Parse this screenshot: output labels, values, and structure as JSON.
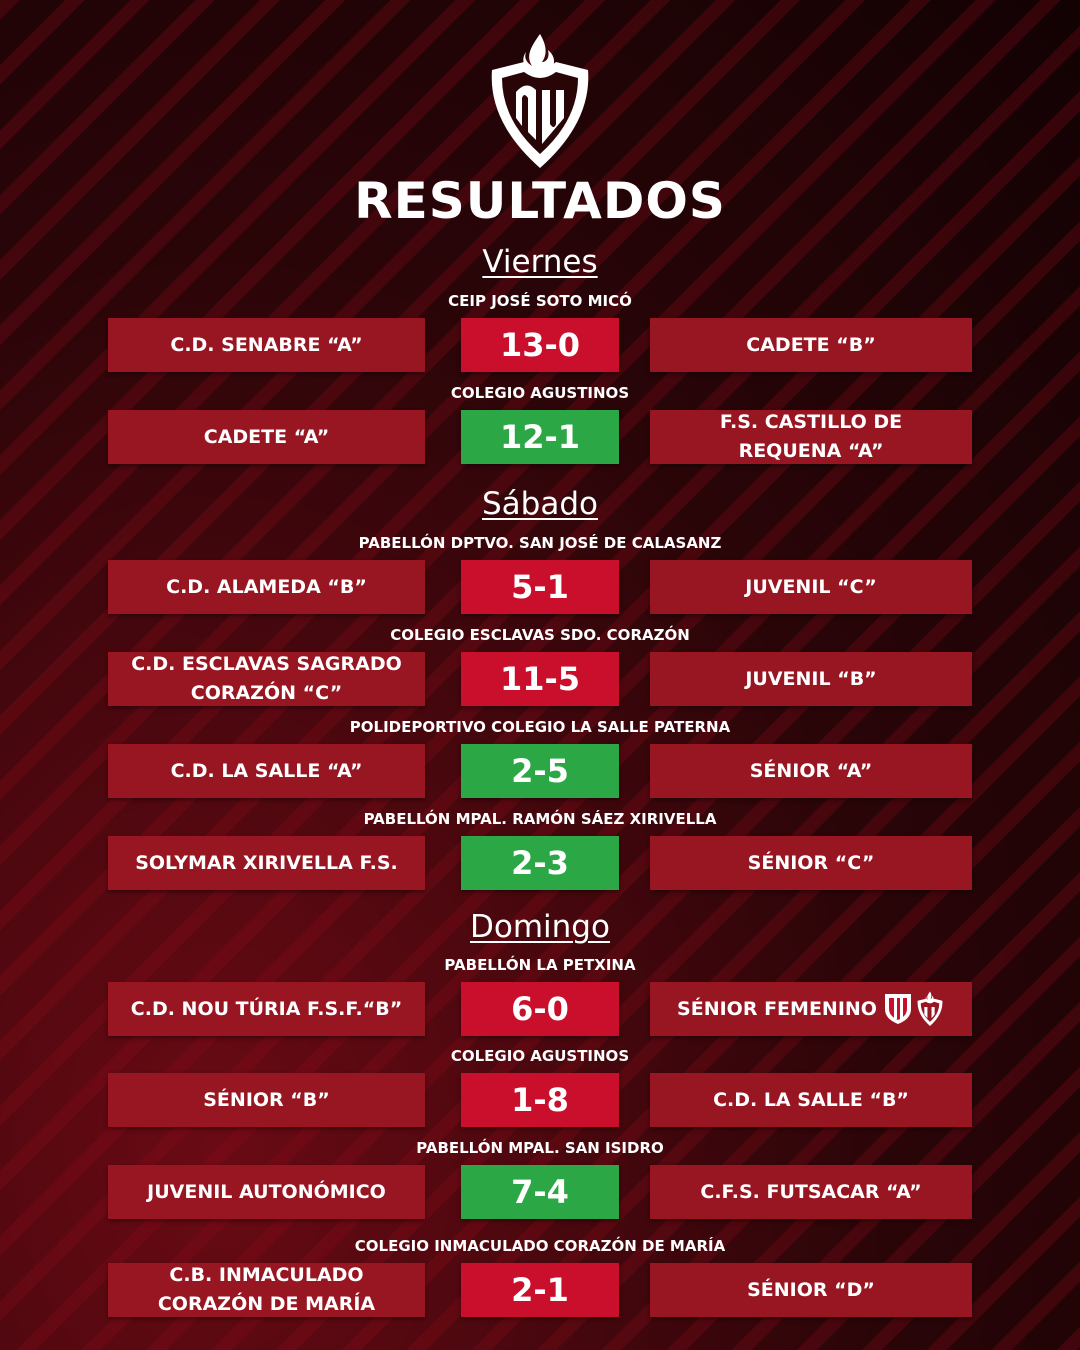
{
  "title": "RESULTADOS",
  "colors": {
    "team_box": "#981522",
    "loss": "#c90f2b",
    "win": "#2ba845"
  },
  "days": [
    {
      "label": "Viernes",
      "matches": [
        {
          "venue": "CEIP JOSÉ SOTO MICÓ",
          "home": "C.D. SENABRE “A”",
          "score": "13-0",
          "away": "CADETE “B”",
          "result": "red"
        },
        {
          "venue": "COLEGIO AGUSTINOS",
          "home": "CADETE “A”",
          "score": "12-1",
          "away": "F.S. CASTILLO DE REQUENA “A”",
          "result": "green"
        }
      ]
    },
    {
      "label": "Sábado",
      "matches": [
        {
          "venue": "PABELLÓN DPTVO. SAN JOSÉ DE CALASANZ",
          "home": "C.D. ALAMEDA “B”",
          "score": "5-1",
          "away": "JUVENIL “C”",
          "result": "red"
        },
        {
          "venue": "COLEGIO ESCLAVAS SDO. CORAZÓN",
          "home": "C.D. ESCLAVAS SAGRADO CORAZÓN “C”",
          "score": "11-5",
          "away": "JUVENIL “B”",
          "result": "red"
        },
        {
          "venue": "POLIDEPORTIVO COLEGIO LA SALLE PATERNA",
          "home": "C.D. LA SALLE “A”",
          "score": "2-5",
          "away": "SÉNIOR “A”",
          "result": "green"
        },
        {
          "venue": "PABELLÓN MPAL. RAMÓN SÁEZ XIRIVELLA",
          "home": "SOLYMAR XIRIVELLA F.S.",
          "score": "2-3",
          "away": "SÉNIOR “C”",
          "result": "green"
        }
      ]
    },
    {
      "label": "Domingo",
      "matches": [
        {
          "venue": "PABELLÓN LA PETXINA",
          "home": "C.D. NOU TÚRIA F.S.F.“B”",
          "score": "6-0",
          "away": "SÉNIOR FEMENINO",
          "result": "red",
          "away_badges": true
        },
        {
          "venue": "COLEGIO AGUSTINOS",
          "home": "SÉNIOR “B”",
          "score": "1-8",
          "away": "C.D. LA SALLE “B”",
          "result": "red"
        },
        {
          "venue": "PABELLÓN MPAL. SAN ISIDRO",
          "home": "JUVENIL AUTONÓMICO",
          "score": "7-4",
          "away": "C.F.S. FUTSACAR “A”",
          "result": "green"
        },
        {
          "venue": "COLEGIO INMACULADO CORAZÓN DE MARÍA",
          "home": "C.B. INMACULADO CORAZÓN DE MARÍA",
          "score": "2-1",
          "away": "SÉNIOR “D”",
          "result": "red"
        }
      ]
    }
  ]
}
